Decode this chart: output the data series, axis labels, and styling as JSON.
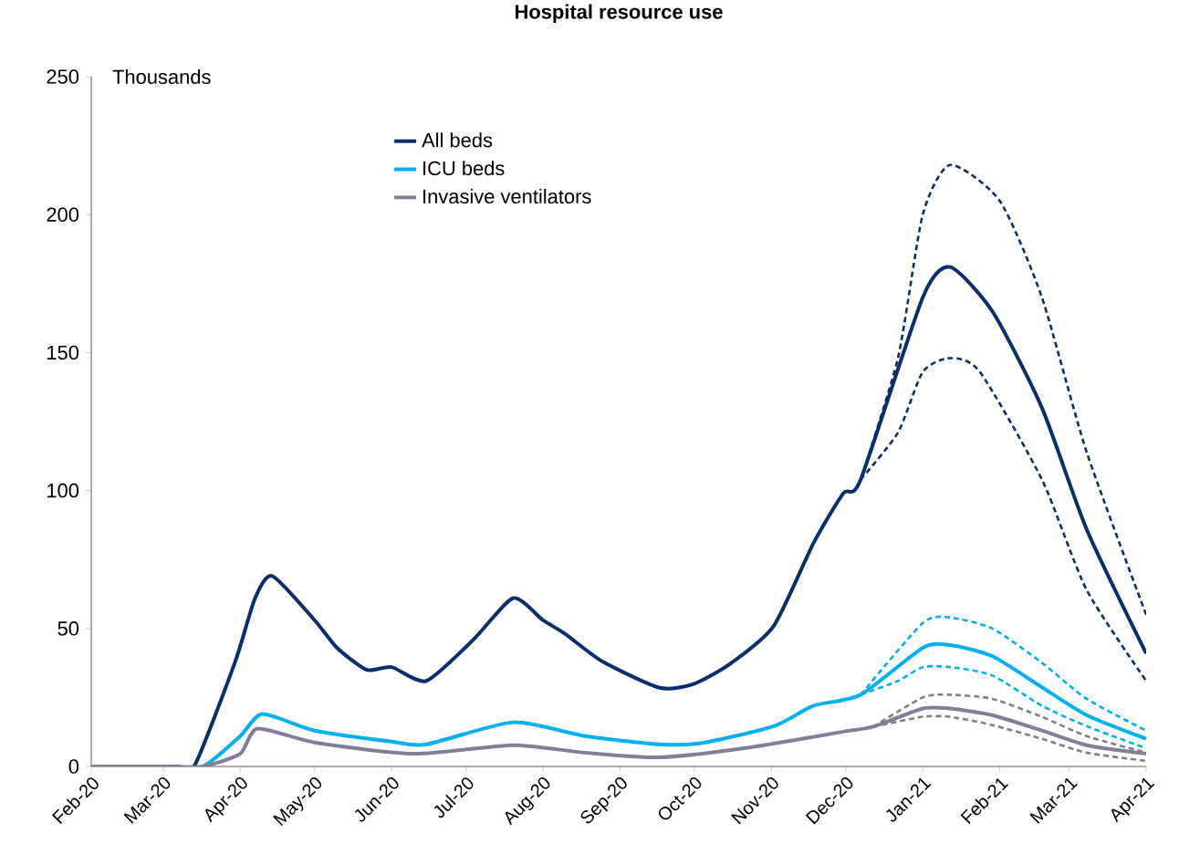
{
  "chart_data": {
    "type": "line",
    "title": "Hospital resource use",
    "ylabel": "Thousands",
    "xlim": [
      "2020-02-01",
      "2021-04-01"
    ],
    "ylim": [
      0,
      250
    ],
    "yticks": [
      0,
      50,
      100,
      150,
      200,
      250
    ],
    "xticks": [
      {
        "value": "2020-02",
        "label": "Feb-20"
      },
      {
        "value": "2020-03",
        "label": "Mar-20"
      },
      {
        "value": "2020-04",
        "label": "Apr-20"
      },
      {
        "value": "2020-05",
        "label": "May-20"
      },
      {
        "value": "2020-06",
        "label": "Jun-20"
      },
      {
        "value": "2020-07",
        "label": "Jul-20"
      },
      {
        "value": "2020-08",
        "label": "Aug-20"
      },
      {
        "value": "2020-09",
        "label": "Sep-20"
      },
      {
        "value": "2020-10",
        "label": "Oct-20"
      },
      {
        "value": "2020-11",
        "label": "Nov-20"
      },
      {
        "value": "2020-12",
        "label": "Dec-20"
      },
      {
        "value": "2021-01",
        "label": "Jan-21"
      },
      {
        "value": "2021-02",
        "label": "Feb-21"
      },
      {
        "value": "2021-03",
        "label": "Mar-21"
      },
      {
        "value": "2021-04",
        "label": "Apr-21"
      }
    ],
    "grid": false,
    "legend": "top left",
    "marker": "none",
    "series": [
      {
        "name": "All beds",
        "color": "#0a2d6e",
        "line_style": "solid",
        "x": [
          "2020-02-01",
          "2020-03-01",
          "2020-03-07",
          "2020-03-14",
          "2020-03-30",
          "2020-04-07",
          "2020-04-14",
          "2020-05-01",
          "2020-05-10",
          "2020-05-22",
          "2020-06-01",
          "2020-06-15",
          "2020-07-04",
          "2020-07-20",
          "2020-08-01",
          "2020-08-10",
          "2020-08-25",
          "2020-09-17",
          "2020-10-01",
          "2020-10-16",
          "2020-11-02",
          "2020-11-18",
          "2020-11-30",
          "2020-12-07",
          "2021-01-01",
          "2021-01-12",
          "2021-01-29",
          "2021-02-18",
          "2021-03-08",
          "2021-04-01"
        ],
        "values": [
          0,
          0,
          0,
          1,
          38,
          61,
          69,
          53,
          43,
          35,
          36,
          31,
          46,
          61,
          53,
          48,
          38,
          28.5,
          30,
          37.6,
          51,
          81,
          99,
          104,
          170,
          181,
          165,
          130,
          86,
          41
        ]
      },
      {
        "name": "ICU beds",
        "color": "#00b0f0",
        "line_style": "solid",
        "x": [
          "2020-02-01",
          "2020-03-01",
          "2020-03-17",
          "2020-04-01",
          "2020-04-10",
          "2020-05-01",
          "2020-06-01",
          "2020-06-15",
          "2020-07-20",
          "2020-08-18",
          "2020-09-17",
          "2020-10-04",
          "2020-11-02",
          "2020-11-18",
          "2020-12-07",
          "2021-01-01",
          "2021-01-12",
          "2021-01-29",
          "2021-02-18",
          "2021-03-08",
          "2021-04-01"
        ],
        "values": [
          0,
          0,
          0,
          11,
          19,
          13,
          9,
          8,
          16,
          11,
          8,
          8.5,
          14.6,
          22,
          26,
          43,
          44,
          40,
          28.7,
          18.6,
          10
        ]
      },
      {
        "name": "Invasive ventilators",
        "color": "#7f7f99",
        "line_style": "solid",
        "x": [
          "2020-02-01",
          "2020-03-01",
          "2020-03-17",
          "2020-04-01",
          "2020-04-08",
          "2020-05-01",
          "2020-06-10",
          "2020-07-20",
          "2020-08-18",
          "2020-09-17",
          "2020-10-21",
          "2020-11-30",
          "2020-12-12",
          "2021-01-01",
          "2021-01-12",
          "2021-01-29",
          "2021-02-18",
          "2021-03-08",
          "2021-04-01"
        ],
        "values": [
          0,
          0,
          0,
          4.6,
          13.7,
          8.7,
          4.6,
          7.7,
          5,
          3.3,
          6.6,
          12.6,
          14.4,
          21,
          21,
          18.6,
          13,
          7.7,
          4.6
        ]
      },
      {
        "color": "#0a2d6e",
        "line_style": "dashed",
        "x": [
          "2020-12-07",
          "2020-12-22",
          "2021-01-01",
          "2021-01-12",
          "2021-02-01",
          "2021-02-18",
          "2021-03-08",
          "2021-04-01"
        ],
        "values": [
          104,
          148,
          200,
          218,
          205,
          170,
          114,
          55
        ]
      },
      {
        "color": "#0a2d6e",
        "line_style": "dashed",
        "x": [
          "2020-12-07",
          "2020-12-22",
          "2021-01-01",
          "2021-01-12",
          "2021-01-24",
          "2021-02-18",
          "2021-03-08",
          "2021-04-01"
        ],
        "values": [
          104,
          121,
          143,
          148,
          143,
          104,
          64,
          31
        ]
      },
      {
        "color": "#00b0f0",
        "line_style": "dashed",
        "x": [
          "2020-12-07",
          "2021-01-01",
          "2021-01-12",
          "2021-01-29",
          "2021-02-18",
          "2021-03-08",
          "2021-04-01"
        ],
        "values": [
          26,
          52,
          54,
          50,
          37.6,
          24.5,
          13
        ]
      },
      {
        "color": "#00b0f0",
        "line_style": "dashed",
        "x": [
          "2020-12-07",
          "2020-12-22",
          "2021-01-01",
          "2021-01-12",
          "2021-01-29",
          "2021-02-18",
          "2021-03-08",
          "2021-04-01"
        ],
        "values": [
          26,
          31,
          36,
          36,
          33,
          22,
          14.6,
          6.6
        ]
      },
      {
        "color": "#808080",
        "line_style": "dashed",
        "x": [
          "2020-12-12",
          "2021-01-01",
          "2021-01-12",
          "2021-01-29",
          "2021-02-18",
          "2021-03-08",
          "2021-04-01"
        ],
        "values": [
          14.4,
          25,
          26,
          24.5,
          18,
          11,
          5
        ]
      },
      {
        "color": "#808080",
        "line_style": "dashed",
        "x": [
          "2020-12-12",
          "2021-01-01",
          "2021-01-12",
          "2021-01-29",
          "2021-02-18",
          "2021-03-08",
          "2021-04-01"
        ],
        "values": [
          14.4,
          18,
          18,
          15,
          10,
          5,
          2
        ]
      }
    ]
  }
}
